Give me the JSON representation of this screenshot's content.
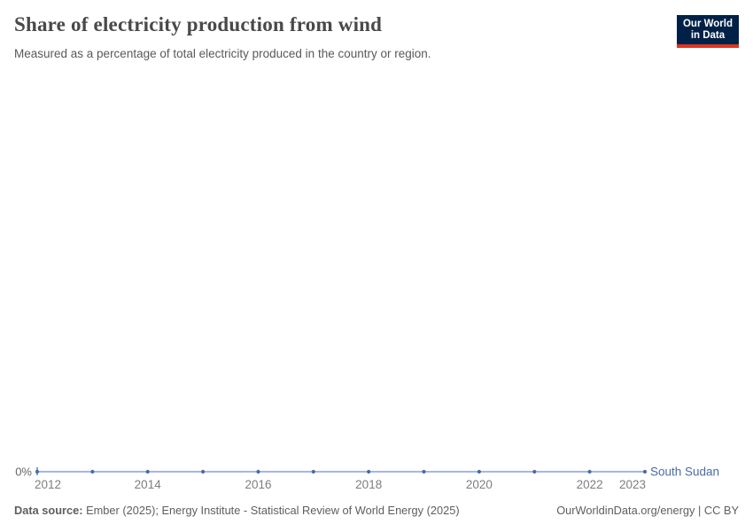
{
  "header": {
    "title": "Share of electricity production from wind",
    "subtitle": "Measured as a percentage of total electricity produced in the country or region.",
    "logo": {
      "line1": "Our World",
      "line2": "in Data",
      "bg_color": "#002147",
      "underline_color": "#dc3522"
    }
  },
  "chart_data": {
    "type": "line",
    "title": "Share of electricity production from wind",
    "subtitle": "Measured as a percentage of total electricity produced in the country or region.",
    "unit": "%",
    "x": [
      2012,
      2013,
      2014,
      2015,
      2016,
      2017,
      2018,
      2019,
      2020,
      2021,
      2022,
      2023
    ],
    "series": [
      {
        "name": "South Sudan",
        "values": [
          0,
          0,
          0,
          0,
          0,
          0,
          0,
          0,
          0,
          0,
          0,
          0
        ]
      }
    ],
    "x_ticks": [
      "2012",
      "2014",
      "2016",
      "2018",
      "2020",
      "2022",
      "2023"
    ],
    "y_ticks": [
      {
        "value": 0,
        "label": "0%"
      }
    ],
    "ylim": [
      0,
      0
    ],
    "grid": false,
    "legend": "series-label-at-line-end",
    "colors": {
      "line": "#88a2cf",
      "point": "#4a6ba8",
      "series_label": "#4a6ba8",
      "x_tick_label": "#7e7e7e",
      "y_tick_label": "#666666"
    }
  },
  "footer": {
    "data_source_label": "Data source:",
    "data_source_value": "Ember (2025); Energy Institute - Statistical Review of World Energy (2025)",
    "credit": "OurWorldinData.org/energy | CC BY"
  }
}
